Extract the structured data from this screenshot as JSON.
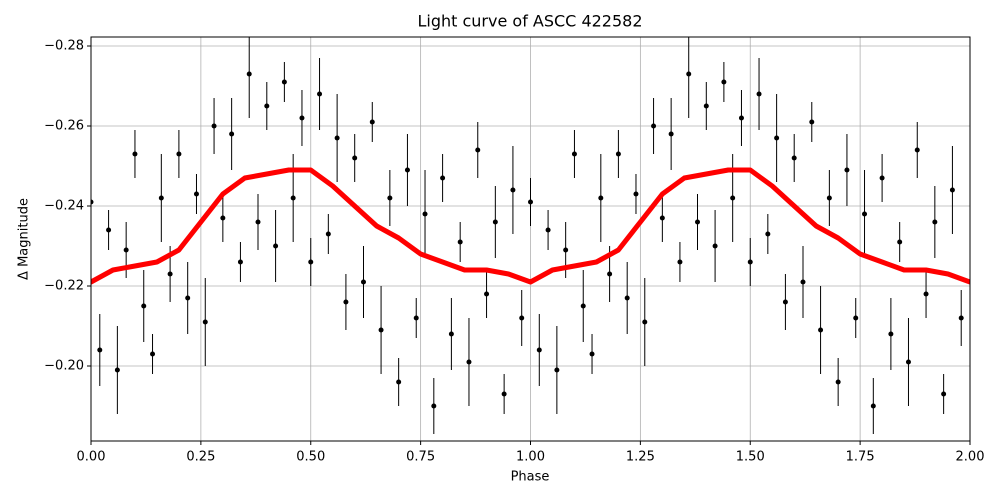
{
  "chart_data": {
    "type": "scatter",
    "title": "Light curve of ASCC 422582",
    "x_label": "Phase",
    "y_label": "Δ Magnitude",
    "xlim": [
      0,
      2
    ],
    "ylim": [
      -0.18125,
      -0.28225
    ],
    "xticks": [
      {
        "value": 0,
        "label": "0.00"
      },
      {
        "value": 0.25,
        "label": "0.25"
      },
      {
        "value": 0.5,
        "label": "0.50"
      },
      {
        "value": 0.75,
        "label": "0.75"
      },
      {
        "value": 1,
        "label": "1.00"
      },
      {
        "value": 1.25,
        "label": "1.25"
      },
      {
        "value": 1.5,
        "label": "1.50"
      },
      {
        "value": 1.75,
        "label": "1.75"
      },
      {
        "value": 2,
        "label": "2.00"
      }
    ],
    "yticks": [
      {
        "value": -0.28,
        "label": "−0.28"
      },
      {
        "value": -0.26,
        "label": "−0.26"
      },
      {
        "value": -0.24,
        "label": "−0.24"
      },
      {
        "value": -0.22,
        "label": "−0.22"
      },
      {
        "value": -0.2,
        "label": "−0.20"
      }
    ],
    "grid": true,
    "series": [
      {
        "type": "errorbar",
        "color": "#000000",
        "x": [
          0,
          0.02,
          0.04,
          0.06,
          0.08,
          0.1,
          0.12,
          0.14,
          0.16,
          0.18,
          0.2,
          0.22,
          0.24,
          0.26,
          0.28,
          0.3,
          0.32,
          0.34,
          0.36,
          0.38,
          0.4,
          0.42,
          0.44,
          0.46,
          0.48,
          0.5,
          0.52,
          0.54,
          0.56,
          0.58,
          0.6,
          0.62,
          0.64,
          0.66,
          0.68,
          0.7,
          0.72,
          0.74,
          0.76,
          0.78,
          0.8,
          0.82,
          0.84,
          0.86,
          0.88,
          0.9,
          0.92,
          0.94,
          0.96,
          0.98,
          1,
          1.02,
          1.04,
          1.06,
          1.08,
          1.1,
          1.12,
          1.14,
          1.16,
          1.18,
          1.2,
          1.22,
          1.24,
          1.26,
          1.28,
          1.3,
          1.32,
          1.34,
          1.36,
          1.38,
          1.4,
          1.42,
          1.44,
          1.46,
          1.48,
          1.5,
          1.52,
          1.54,
          1.56,
          1.58,
          1.6,
          1.62,
          1.64,
          1.66,
          1.68,
          1.7,
          1.72,
          1.74,
          1.76,
          1.78,
          1.8,
          1.82,
          1.84,
          1.86,
          1.88,
          1.9,
          1.92,
          1.94,
          1.96,
          1.98
        ],
        "values": [
          -0.241,
          -0.204,
          -0.234,
          -0.199,
          -0.229,
          -0.253,
          -0.215,
          -0.203,
          -0.242,
          -0.223,
          -0.253,
          -0.217,
          -0.243,
          -0.211,
          -0.26,
          -0.237,
          -0.258,
          -0.226,
          -0.273,
          -0.236,
          -0.265,
          -0.23,
          -0.271,
          -0.242,
          -0.262,
          -0.226,
          -0.268,
          -0.233,
          -0.257,
          -0.216,
          -0.252,
          -0.221,
          -0.261,
          -0.209,
          -0.242,
          -0.196,
          -0.249,
          -0.212,
          -0.238,
          -0.19,
          -0.247,
          -0.208,
          -0.231,
          -0.201,
          -0.254,
          -0.218,
          -0.236,
          -0.193,
          -0.244,
          -0.212,
          -0.241,
          -0.204,
          -0.234,
          -0.199,
          -0.229,
          -0.253,
          -0.215,
          -0.203,
          -0.242,
          -0.223,
          -0.253,
          -0.217,
          -0.243,
          -0.211,
          -0.26,
          -0.237,
          -0.258,
          -0.226,
          -0.273,
          -0.236,
          -0.265,
          -0.23,
          -0.271,
          -0.242,
          -0.262,
          -0.226,
          -0.268,
          -0.233,
          -0.257,
          -0.216,
          -0.252,
          -0.221,
          -0.261,
          -0.209,
          -0.242,
          -0.196,
          -0.249,
          -0.212,
          -0.238,
          -0.19,
          -0.247,
          -0.208,
          -0.231,
          -0.201,
          -0.254,
          -0.218,
          -0.236,
          -0.193,
          -0.244,
          -0.212
        ],
        "errors": [
          0.006,
          0.009,
          0.005,
          0.011,
          0.007,
          0.006,
          0.009,
          0.005,
          0.011,
          0.007,
          0.006,
          0.009,
          0.005,
          0.011,
          0.007,
          0.006,
          0.009,
          0.005,
          0.011,
          0.007,
          0.006,
          0.009,
          0.005,
          0.011,
          0.007,
          0.006,
          0.009,
          0.005,
          0.011,
          0.007,
          0.006,
          0.009,
          0.005,
          0.011,
          0.007,
          0.006,
          0.009,
          0.005,
          0.011,
          0.007,
          0.006,
          0.009,
          0.005,
          0.011,
          0.007,
          0.006,
          0.009,
          0.005,
          0.011,
          0.007,
          0.006,
          0.009,
          0.005,
          0.011,
          0.007,
          0.006,
          0.009,
          0.005,
          0.011,
          0.007,
          0.006,
          0.009,
          0.005,
          0.011,
          0.007,
          0.006,
          0.009,
          0.005,
          0.011,
          0.007,
          0.006,
          0.009,
          0.005,
          0.011,
          0.007,
          0.006,
          0.009,
          0.005,
          0.011,
          0.007,
          0.006,
          0.009,
          0.005,
          0.011,
          0.007,
          0.006,
          0.009,
          0.005,
          0.011,
          0.007,
          0.006,
          0.009,
          0.005,
          0.011,
          0.007,
          0.006,
          0.009,
          0.005,
          0.011,
          0.007
        ]
      },
      {
        "type": "line",
        "color": "#ff0000",
        "x": [
          0,
          0.05,
          0.1,
          0.15,
          0.2,
          0.25,
          0.3,
          0.35,
          0.4,
          0.45,
          0.5,
          0.55,
          0.6,
          0.65,
          0.7,
          0.75,
          0.8,
          0.85,
          0.9,
          0.95,
          1,
          1.05,
          1.1,
          1.15,
          1.2,
          1.25,
          1.3,
          1.35,
          1.4,
          1.45,
          1.5,
          1.55,
          1.6,
          1.65,
          1.7,
          1.75,
          1.8,
          1.85,
          1.9,
          1.95,
          2
        ],
        "values": [
          -0.221,
          -0.224,
          -0.225,
          -0.226,
          -0.229,
          -0.236,
          -0.243,
          -0.247,
          -0.248,
          -0.249,
          -0.249,
          -0.245,
          -0.24,
          -0.235,
          -0.232,
          -0.228,
          -0.226,
          -0.224,
          -0.224,
          -0.223,
          -0.221,
          -0.224,
          -0.225,
          -0.226,
          -0.229,
          -0.236,
          -0.243,
          -0.247,
          -0.248,
          -0.249,
          -0.249,
          -0.245,
          -0.24,
          -0.235,
          -0.232,
          -0.228,
          -0.226,
          -0.224,
          -0.224,
          -0.223,
          -0.221
        ]
      }
    ]
  }
}
